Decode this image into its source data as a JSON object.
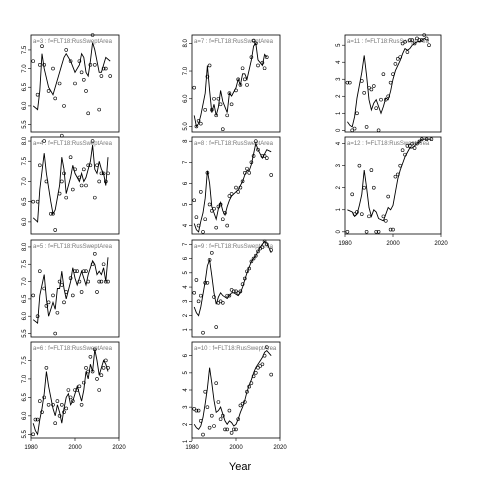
{
  "xlabel": "Year",
  "chart_data": [
    {
      "type": "scatter",
      "title": "a=3 : f=FLT18:RusSweptArea",
      "xlim": [
        1980,
        2020
      ],
      "ylim": [
        5.3,
        7.9
      ],
      "yticks": [
        "5.5",
        "6.0",
        "6.5",
        "7.0",
        "7.5"
      ],
      "xticks": [],
      "x": [
        1981,
        1983,
        1984,
        1985,
        1986,
        1988,
        1990,
        1991,
        1993,
        1994,
        1995,
        1996,
        1998,
        2000,
        2002,
        2003,
        2004,
        2005,
        2006,
        2007,
        2008,
        2009,
        2011,
        2012,
        2013,
        2014,
        2016
      ],
      "y": [
        7.2,
        6.3,
        7.1,
        7.6,
        7.1,
        6.4,
        7.0,
        6.2,
        6.6,
        5.2,
        6.0,
        7.5,
        7.2,
        6.6,
        7.2,
        6.9,
        6.7,
        6.4,
        5.8,
        7.1,
        7.9,
        7.1,
        5.9,
        6.8,
        7.0,
        7.0,
        6.8
      ],
      "fit_y": [
        6.0,
        5.9,
        6.4,
        7.4,
        7.0,
        6.5,
        6.3,
        6.5,
        6.9,
        7.1,
        7.3,
        7.4,
        7.2,
        6.9,
        7.1,
        7.4,
        7.3,
        6.9,
        6.8,
        7.2,
        7.7,
        7.5,
        6.9,
        6.9,
        7.1,
        7.3,
        7.2
      ]
    },
    {
      "type": "scatter",
      "title": "a=4 : f=FLT18:RusSweptArea",
      "xlim": [
        1980,
        2020
      ],
      "ylim": [
        5.7,
        8.1
      ],
      "yticks": [
        "6.0",
        "6.5",
        "7.0",
        "7.5",
        "8.0"
      ],
      "xticks": [],
      "x": [
        1981,
        1983,
        1984,
        1986,
        1987,
        1989,
        1990,
        1991,
        1993,
        1994,
        1995,
        1996,
        1998,
        1999,
        2000,
        2002,
        2003,
        2004,
        2005,
        2006,
        2007,
        2008,
        2009,
        2010,
        2011,
        2012,
        2013,
        2014,
        2015
      ],
      "y": [
        6.5,
        6.5,
        7.4,
        8.0,
        7.0,
        6.2,
        6.2,
        5.8,
        6.7,
        7.0,
        7.2,
        6.6,
        7.6,
        6.8,
        7.3,
        7.1,
        6.9,
        7.3,
        6.9,
        7.4,
        7.4,
        8.0,
        6.6,
        7.4,
        7.0,
        7.2,
        7.2,
        7.0,
        7.2
      ],
      "fit_y": [
        6.1,
        6.0,
        6.8,
        7.7,
        7.2,
        6.5,
        6.2,
        6.3,
        6.9,
        7.6,
        7.3,
        6.7,
        7.1,
        7.4,
        7.2,
        7.0,
        7.2,
        7.0,
        7.1,
        7.3,
        7.5,
        7.9,
        7.3,
        7.2,
        7.5,
        7.3,
        7.2,
        6.9,
        7.6
      ]
    },
    {
      "type": "scatter",
      "title": "a=5 : f=FLT18:RusSweptArea",
      "xlim": [
        1980,
        2020
      ],
      "ylim": [
        5.4,
        8.2
      ],
      "yticks": [
        "5.5",
        "6.0",
        "6.5",
        "7.0",
        "7.5",
        "8.0"
      ],
      "xticks": [],
      "x": [
        1981,
        1983,
        1984,
        1986,
        1987,
        1988,
        1990,
        1991,
        1992,
        1993,
        1994,
        1995,
        1996,
        1998,
        1999,
        2000,
        2001,
        2002,
        2003,
        2004,
        2005,
        2006,
        2008,
        2009,
        2010,
        2011,
        2012,
        2013,
        2014,
        2015
      ],
      "y": [
        6.6,
        6.0,
        7.3,
        6.8,
        6.3,
        6.4,
        6.6,
        5.5,
        6.1,
        7.0,
        6.9,
        6.4,
        6.7,
        7.1,
        6.6,
        7.3,
        7.3,
        7.0,
        6.7,
        7.3,
        7.3,
        7.0,
        7.5,
        7.8,
        6.7,
        7.0,
        7.0,
        7.5,
        7.0,
        7.0
      ],
      "fit_y": [
        5.9,
        5.8,
        6.6,
        7.2,
        6.5,
        6.0,
        6.4,
        6.2,
        6.8,
        6.8,
        7.3,
        6.8,
        6.5,
        7.0,
        7.4,
        7.1,
        6.9,
        7.1,
        7.3,
        7.1,
        6.9,
        7.2,
        7.6,
        7.5,
        7.2,
        7.3,
        7.2,
        7.4,
        7.0,
        7.7
      ]
    },
    {
      "type": "scatter",
      "title": "a=6 : f=FLT18:RusSweptArea",
      "xlim": [
        1980,
        2020
      ],
      "ylim": [
        5.4,
        8.0
      ],
      "yticks": [
        "5.5",
        "6.0",
        "6.5",
        "7.0",
        "7.5"
      ],
      "xticks": [
        "1980",
        "2000",
        "2020"
      ],
      "x": [
        1981,
        1982,
        1983,
        1984,
        1985,
        1986,
        1987,
        1988,
        1990,
        1991,
        1992,
        1993,
        1994,
        1995,
        1996,
        1997,
        1998,
        1999,
        2000,
        2001,
        2002,
        2003,
        2004,
        2005,
        2006,
        2007,
        2008,
        2009,
        2010,
        2011,
        2012,
        2013,
        2014,
        2015
      ],
      "y": [
        5.5,
        5.9,
        5.9,
        6.4,
        6.1,
        6.5,
        7.3,
        6.3,
        6.3,
        5.8,
        6.4,
        6.0,
        6.3,
        6.1,
        6.2,
        6.7,
        6.5,
        6.4,
        6.7,
        6.7,
        6.8,
        6.3,
        6.9,
        7.3,
        7.2,
        7.6,
        7.2,
        7.8,
        7.0,
        6.7,
        7.1,
        7.3,
        7.5,
        7.3
      ],
      "fit_y": [
        5.8,
        5.6,
        5.5,
        5.9,
        6.2,
        6.6,
        7.2,
        6.8,
        6.2,
        6.0,
        6.3,
        6.1,
        5.8,
        6.2,
        6.5,
        6.6,
        6.3,
        6.4,
        6.6,
        6.8,
        6.6,
        6.4,
        6.7,
        7.2,
        7.0,
        7.4,
        7.2,
        7.8,
        7.5,
        7.1,
        7.3,
        7.5,
        7.4,
        7.2
      ]
    },
    {
      "type": "scatter",
      "title": "a=7 : f=FLT18:RusSweptArea",
      "xlim": [
        1980,
        2020
      ],
      "ylim": [
        4.8,
        8.3
      ],
      "yticks": [
        "5.0",
        "6.0",
        "7.0",
        "8.0"
      ],
      "xticks": [],
      "x": [
        1981,
        1982,
        1983,
        1984,
        1986,
        1987,
        1988,
        1989,
        1990,
        1991,
        1992,
        1993,
        1994,
        1996,
        1997,
        1998,
        2000,
        2001,
        2002,
        2003,
        2004,
        2005,
        2007,
        2008,
        2009,
        2010,
        2012,
        2013,
        2014
      ],
      "y": [
        6.4,
        5.0,
        5.2,
        5.1,
        5.6,
        6.8,
        7.2,
        5.6,
        6.0,
        5.4,
        6.0,
        5.8,
        4.9,
        5.4,
        6.2,
        5.8,
        6.3,
        6.7,
        6.5,
        7.1,
        6.7,
        6.5,
        7.5,
        8.1,
        8.0,
        7.2,
        7.3,
        7.1,
        7.5
      ],
      "fit_y": [
        5.4,
        5.0,
        5.1,
        5.4,
        6.2,
        7.2,
        6.3,
        5.5,
        5.8,
        5.4,
        5.7,
        6.3,
        5.9,
        5.5,
        6.2,
        6.1,
        6.4,
        6.7,
        6.5,
        6.9,
        6.9,
        6.7,
        7.4,
        7.9,
        8.0,
        7.4,
        7.2,
        7.6,
        7.5
      ]
    },
    {
      "type": "scatter",
      "title": "a=8 : f=FLT18:RusSweptArea",
      "xlim": [
        1980,
        2020
      ],
      "ylim": [
        3.6,
        8.2
      ],
      "yticks": [
        "4",
        "5",
        "6",
        "7",
        "8"
      ],
      "xticks": [],
      "x": [
        1981,
        1982,
        1983,
        1984,
        1985,
        1986,
        1987,
        1988,
        1989,
        1990,
        1991,
        1992,
        1993,
        1994,
        1995,
        1996,
        1997,
        1998,
        2000,
        2001,
        2002,
        2003,
        2004,
        2005,
        2006,
        2007,
        2008,
        2009,
        2010,
        2012,
        2013,
        2014,
        2016
      ],
      "y": [
        5.2,
        4.4,
        4.0,
        5.6,
        3.7,
        4.3,
        6.5,
        5.0,
        4.7,
        4.8,
        3.9,
        4.9,
        5.0,
        4.3,
        4.6,
        4.0,
        5.4,
        5.5,
        5.8,
        5.6,
        5.8,
        6.1,
        6.5,
        6.7,
        6.5,
        7.0,
        7.3,
        8.0,
        7.6,
        7.3,
        7.3,
        7.2,
        6.4
      ],
      "fit_y": [
        4.1,
        3.8,
        3.7,
        4.2,
        4.6,
        5.3,
        6.6,
        6.0,
        4.9,
        4.6,
        4.3,
        4.8,
        5.1,
        4.7,
        4.5,
        4.9,
        5.2,
        5.4,
        5.6,
        5.7,
        5.9,
        6.1,
        6.4,
        6.6,
        6.6,
        6.9,
        7.4,
        7.9,
        7.6,
        7.2,
        7.4,
        7.6,
        7.5
      ]
    },
    {
      "type": "scatter",
      "title": "a=9 : f=FLT18:RusSweptArea",
      "xlim": [
        1980,
        2020
      ],
      "ylim": [
        0.5,
        7.3
      ],
      "yticks": [
        "1",
        "2",
        "3",
        "4",
        "5",
        "6",
        "7"
      ],
      "xticks": [],
      "x": [
        1981,
        1982,
        1983,
        1984,
        1985,
        1986,
        1987,
        1988,
        1989,
        1990,
        1991,
        1992,
        1993,
        1994,
        1996,
        1997,
        1998,
        1999,
        2000,
        2001,
        2002,
        2003,
        2004,
        2005,
        2006,
        2007,
        2008,
        2009,
        2010,
        2011,
        2012,
        2013,
        2014,
        2016
      ],
      "y": [
        3.6,
        4.5,
        3.0,
        3.4,
        0.8,
        4.3,
        4.3,
        5.9,
        6.4,
        3.3,
        1.2,
        2.9,
        3.0,
        2.9,
        3.4,
        3.4,
        3.8,
        3.7,
        3.7,
        3.6,
        3.7,
        4.2,
        4.6,
        5.1,
        5.3,
        5.8,
        6.0,
        6.2,
        6.5,
        6.7,
        6.8,
        7.2,
        7.0,
        6.6
      ],
      "fit_y": [
        2.6,
        2.2,
        2.0,
        2.6,
        3.5,
        4.4,
        5.5,
        5.9,
        4.8,
        3.6,
        2.8,
        3.3,
        3.6,
        3.4,
        3.2,
        3.4,
        3.6,
        3.6,
        3.5,
        3.4,
        3.6,
        4.0,
        4.5,
        5.0,
        5.4,
        5.8,
        6.0,
        6.2,
        6.5,
        6.8,
        7.0,
        7.2,
        7.1,
        6.4
      ]
    },
    {
      "type": "scatter",
      "title": "a=10 : f=FLT18:RusSweptArea",
      "xlim": [
        1980,
        2020
      ],
      "ylim": [
        1.2,
        6.8
      ],
      "yticks": [
        "1",
        "2",
        "3",
        "4",
        "5",
        "6"
      ],
      "xticks": [
        "1980",
        "2000",
        "2020"
      ],
      "x": [
        1981,
        1982,
        1983,
        1984,
        1985,
        1986,
        1987,
        1988,
        1989,
        1990,
        1991,
        1992,
        1993,
        1994,
        1995,
        1996,
        1997,
        1998,
        1999,
        2000,
        2001,
        2002,
        2003,
        2004,
        2005,
        2006,
        2007,
        2008,
        2009,
        2010,
        2011,
        2012,
        2013,
        2014,
        2016
      ],
      "y": [
        2.9,
        2.8,
        2.8,
        2.2,
        1.4,
        3.9,
        3.0,
        1.8,
        2.5,
        1.9,
        4.4,
        3.3,
        2.3,
        2.5,
        1.7,
        1.7,
        2.8,
        1.5,
        1.7,
        1.7,
        2.3,
        3.1,
        3.2,
        3.3,
        3.9,
        4.2,
        4.4,
        4.8,
        5.0,
        5.3,
        5.4,
        5.5,
        6.0,
        6.5,
        4.9
      ],
      "fit_y": [
        2.0,
        1.8,
        1.7,
        1.9,
        2.4,
        3.2,
        4.1,
        5.3,
        4.4,
        3.4,
        2.7,
        2.8,
        3.0,
        2.6,
        2.2,
        2.0,
        2.2,
        2.1,
        1.9,
        2.0,
        2.3,
        2.7,
        3.0,
        3.4,
        3.9,
        4.3,
        4.6,
        5.0,
        5.3,
        5.5,
        5.7,
        5.9,
        6.2,
        6.3,
        6.0
      ]
    },
    {
      "type": "scatter",
      "title": "a=11 : f=FLT18:RusSweptArea",
      "xlim": [
        1980,
        2020
      ],
      "ylim": [
        -0.1,
        5.6
      ],
      "yticks": [
        "0",
        "1",
        "2",
        "3",
        "4",
        "5"
      ],
      "xticks": [],
      "x": [
        1981,
        1982,
        1983,
        1984,
        1985,
        1987,
        1988,
        1989,
        1990,
        1991,
        1992,
        1993,
        1994,
        1995,
        1996,
        1997,
        1998,
        1999,
        2000,
        2001,
        2002,
        2003,
        2004,
        2005,
        2006,
        2007,
        2008,
        2009,
        2010,
        2011,
        2012,
        2013,
        2014,
        2015
      ],
      "y": [
        2.8,
        2.8,
        0.0,
        0.1,
        1.0,
        2.9,
        2.2,
        0.2,
        2.5,
        2.4,
        2.6,
        1.3,
        0.0,
        1.8,
        3.3,
        1.8,
        2.0,
        2.8,
        3.3,
        3.9,
        4.2,
        4.3,
        5.1,
        5.2,
        4.6,
        5.3,
        5.3,
        5.1,
        5.4,
        5.3,
        5.3,
        5.6,
        5.4,
        5.0
      ],
      "fit_y": [
        0.5,
        0.3,
        0.2,
        0.8,
        1.9,
        3.4,
        4.4,
        3.2,
        1.8,
        1.2,
        1.6,
        1.8,
        1.4,
        1.0,
        1.4,
        1.9,
        1.8,
        2.3,
        3.0,
        3.5,
        3.8,
        4.1,
        4.5,
        4.8,
        4.7,
        4.8,
        5.0,
        5.1,
        5.2,
        5.2,
        5.3,
        5.4,
        5.3,
        5.3
      ]
    },
    {
      "type": "scatter",
      "title": "a=12 : f=FLT18:RusSweptArea",
      "xlim": [
        1980,
        2020
      ],
      "ylim": [
        -0.1,
        4.3
      ],
      "yticks": [
        "0",
        "1",
        "2",
        "3",
        "4"
      ],
      "xticks": [
        "1980",
        "2000",
        "2020"
      ],
      "x": [
        1981,
        1983,
        1984,
        1985,
        1986,
        1987,
        1988,
        1989,
        1990,
        1991,
        1992,
        1993,
        1994,
        1996,
        1997,
        1998,
        1999,
        2000,
        2001,
        2002,
        2003,
        2004,
        2005,
        2006,
        2007,
        2008,
        2009,
        2010,
        2011,
        2012,
        2014,
        2016
      ],
      "y": [
        0.0,
        1.7,
        0.8,
        0.9,
        3.0,
        0.8,
        2.0,
        0.0,
        0.7,
        2.8,
        2.0,
        0.0,
        0.0,
        0.7,
        0.5,
        1.6,
        0.1,
        0.1,
        2.5,
        2.6,
        3.0,
        3.7,
        3.5,
        3.9,
        3.9,
        4.0,
        3.8,
        4.0,
        4.1,
        4.2,
        4.2,
        4.2
      ],
      "fit_y": [
        1.0,
        0.9,
        0.7,
        0.8,
        1.2,
        1.7,
        2.8,
        2.0,
        1.1,
        0.7,
        1.0,
        0.9,
        0.6,
        0.5,
        0.8,
        1.1,
        1.0,
        1.2,
        1.8,
        2.4,
        2.8,
        3.1,
        3.4,
        3.6,
        3.8,
        3.8,
        3.9,
        4.0,
        4.1,
        4.2,
        4.2,
        4.2
      ]
    }
  ]
}
